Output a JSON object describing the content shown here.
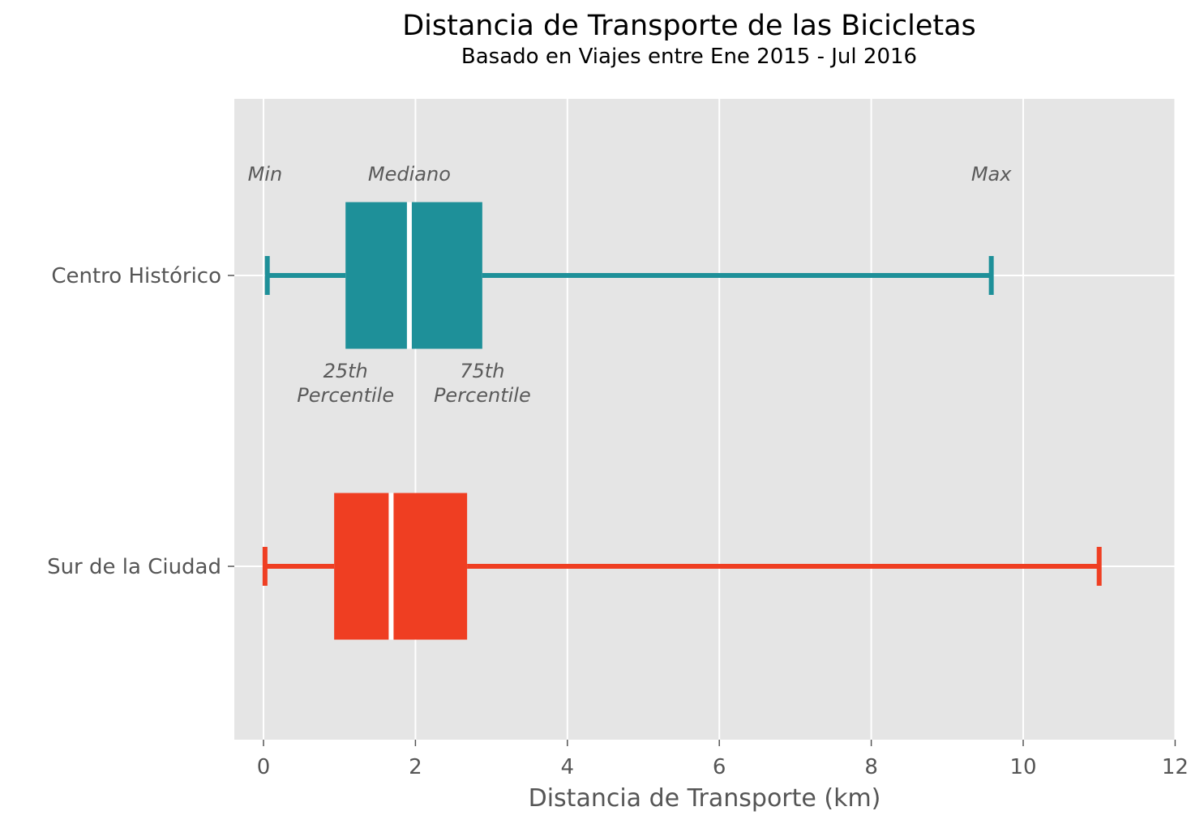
{
  "chart_data": {
    "type": "boxplot",
    "orientation": "horizontal",
    "title": "Distancia de Transporte de las Bicicletas",
    "subtitle": "Basado en Viajes entre Ene 2015 - Jul 2016",
    "xlabel": "Distancia de Transporte (km)",
    "ylabel": "",
    "xlim": [
      -0.4,
      12
    ],
    "xticks": [
      "0",
      "2",
      "4",
      "6",
      "8",
      "10",
      "12"
    ],
    "grid": true,
    "series": [
      {
        "name": "Centro Histórico",
        "color": "#1e9099",
        "min": 0.05,
        "q1": 1.08,
        "median": 1.92,
        "q3": 2.88,
        "max": 9.58
      },
      {
        "name": "Sur de la Ciudad",
        "color": "#ef3e22",
        "min": 0.02,
        "q1": 0.93,
        "median": 1.68,
        "q3": 2.68,
        "max": 11.0
      }
    ],
    "annotations": [
      {
        "text": "Min",
        "x": 0.02
      },
      {
        "text": "Mediano",
        "x": 1.92
      },
      {
        "text": "Max",
        "x": 9.58
      },
      {
        "text": "25th",
        "text2": "Percentile",
        "x": 1.08
      },
      {
        "text": "75th",
        "text2": "Percentile",
        "x": 2.88
      }
    ]
  }
}
